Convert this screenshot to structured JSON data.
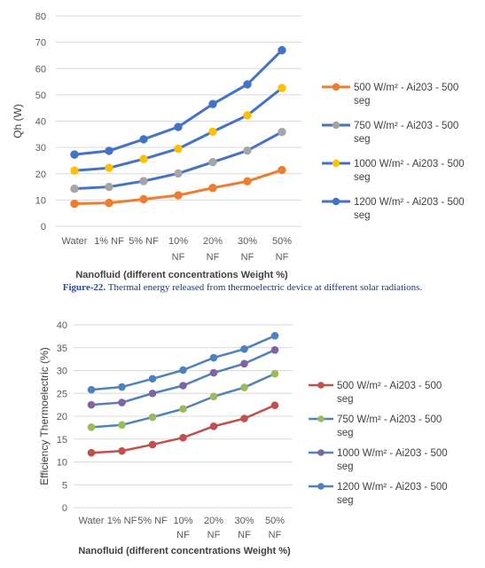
{
  "caption": {
    "label": "Figure-22.",
    "text": "Thermal energy released from thermoelectric device at different solar radiations."
  },
  "chart_data": [
    {
      "type": "line",
      "title": "",
      "ylabel": "Qh (W)",
      "xlabel": "Nanofluid (different concentrations Weight %)",
      "ylim": [
        0,
        80
      ],
      "yticks": [
        0,
        10,
        20,
        30,
        40,
        50,
        60,
        70,
        80
      ],
      "categories": [
        [
          "Water"
        ],
        [
          "1% NF"
        ],
        [
          "5% NF"
        ],
        [
          "10%",
          "NF"
        ],
        [
          "20%",
          "NF"
        ],
        [
          "30%",
          "NF"
        ],
        [
          "50%",
          "NF"
        ]
      ],
      "grid": true,
      "legend_position": "right",
      "series": [
        {
          "name": [
            "500 W/m² - Ai203 - 500",
            "seg"
          ],
          "color": "#ed7d31",
          "line": "#ed7d31",
          "values": [
            8.6,
            8.9,
            10.3,
            11.8,
            14.6,
            17.1,
            21.4
          ]
        },
        {
          "name": [
            "750 W/m² - Ai203 - 500",
            "seg"
          ],
          "color": "#a5a5a5",
          "line": "#4472c4",
          "values": [
            14.3,
            15.0,
            17.2,
            20.1,
            24.4,
            28.8,
            35.9
          ]
        },
        {
          "name": [
            "1000 W/m² - Ai203 - 500",
            "seg"
          ],
          "color": "#ffc000",
          "line": "#4472c4",
          "values": [
            21.2,
            22.2,
            25.6,
            29.5,
            36.0,
            42.2,
            52.6
          ]
        },
        {
          "name": [
            "1200 W/m² - Ai203 - 500",
            "seg"
          ],
          "color": "#4472c4",
          "line": "#4472c4",
          "values": [
            27.3,
            28.7,
            33.1,
            37.8,
            46.5,
            54.0,
            67.0
          ]
        }
      ]
    },
    {
      "type": "line",
      "title": "",
      "ylabel": "Efficiency Thermoelectric (%)",
      "xlabel": "Nanofluid (different concentrations Weight %)",
      "ylim": [
        0,
        40
      ],
      "yticks": [
        0,
        5,
        10,
        15,
        20,
        25,
        30,
        35,
        40
      ],
      "categories": [
        [
          "Water"
        ],
        [
          "1% NF"
        ],
        [
          "5% NF"
        ],
        [
          "10%",
          "NF"
        ],
        [
          "20%",
          "NF"
        ],
        [
          "30%",
          "NF"
        ],
        [
          "50%",
          "NF"
        ]
      ],
      "grid": true,
      "legend_position": "right",
      "series": [
        {
          "name": [
            "500 W/m² - Ai203 - 500",
            "seg"
          ],
          "color": "#c0504d",
          "line": "#c0504d",
          "values": [
            12.0,
            12.4,
            13.8,
            15.3,
            17.8,
            19.5,
            22.4
          ]
        },
        {
          "name": [
            "750 W/m² - Ai203 - 500",
            "seg"
          ],
          "color": "#9bbb59",
          "line": "#4f81bd",
          "values": [
            17.6,
            18.1,
            19.8,
            21.6,
            24.3,
            26.3,
            29.3
          ]
        },
        {
          "name": [
            "1000 W/m² - Ai203 - 500",
            "seg"
          ],
          "color": "#8064a2",
          "line": "#4f81bd",
          "values": [
            22.5,
            23.0,
            25.0,
            26.7,
            29.5,
            31.5,
            34.5
          ]
        },
        {
          "name": [
            "1200 W/m² - Ai203 - 500",
            "seg"
          ],
          "color": "#4f81bd",
          "line": "#4f81bd",
          "values": [
            25.8,
            26.4,
            28.2,
            30.1,
            32.8,
            34.7,
            37.6
          ]
        }
      ]
    }
  ]
}
